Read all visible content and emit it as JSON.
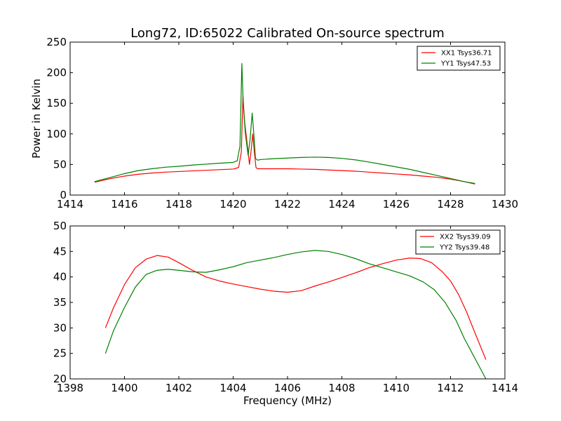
{
  "figure": {
    "title": "Long72, ID:65022 Calibrated On-source spectrum"
  },
  "chart_data": [
    {
      "type": "line",
      "title": "Long72, ID:65022 Calibrated On-source spectrum",
      "xlabel": "",
      "ylabel": "Power in Kelvin",
      "xlim": [
        1414,
        1430
      ],
      "ylim": [
        0,
        250
      ],
      "xticks": [
        1414,
        1416,
        1418,
        1420,
        1422,
        1424,
        1426,
        1428,
        1430
      ],
      "yticks": [
        0,
        50,
        100,
        150,
        200,
        250
      ],
      "grid": false,
      "legend": "top-right",
      "series": [
        {
          "name": "XX1 Tsys36.71",
          "color": "#ff0000",
          "x": [
            1414.9,
            1415.5,
            1416,
            1416.5,
            1417,
            1417.5,
            1418,
            1418.5,
            1419,
            1419.5,
            1420,
            1420.2,
            1420.3,
            1420.36,
            1420.42,
            1420.5,
            1420.6,
            1420.66,
            1420.72,
            1420.78,
            1420.84,
            1420.9,
            1421,
            1421.5,
            1422,
            1422.5,
            1423,
            1423.5,
            1424,
            1424.5,
            1425,
            1425.5,
            1426,
            1426.5,
            1427,
            1427.5,
            1428,
            1428.5,
            1428.9
          ],
          "y": [
            21,
            27,
            31,
            34,
            36,
            37.5,
            38.5,
            39.5,
            40.5,
            41.5,
            42.5,
            45,
            70,
            162,
            120,
            90,
            50,
            72,
            100,
            70,
            45,
            43,
            43,
            43,
            43,
            42.5,
            42,
            41,
            40,
            39,
            37.5,
            36,
            34.5,
            33,
            31,
            29,
            26,
            22,
            18
          ]
        },
        {
          "name": "YY1 Tsys47.53",
          "color": "#008000",
          "x": [
            1414.9,
            1415.5,
            1416,
            1416.5,
            1417,
            1417.5,
            1418,
            1418.5,
            1419,
            1419.5,
            1420,
            1420.15,
            1420.25,
            1420.32,
            1420.37,
            1420.45,
            1420.55,
            1420.62,
            1420.7,
            1420.76,
            1420.82,
            1420.9,
            1421,
            1421.5,
            1422,
            1422.5,
            1423,
            1423.5,
            1424,
            1424.5,
            1425,
            1425.5,
            1426,
            1426.5,
            1427,
            1427.5,
            1428,
            1428.5,
            1428.9
          ],
          "y": [
            22,
            29,
            35,
            40,
            43,
            45.5,
            47,
            49,
            50.5,
            52,
            53.5,
            56,
            80,
            215,
            150,
            100,
            65,
            90,
            134,
            100,
            60,
            57,
            58,
            59.5,
            60.5,
            61.5,
            62,
            61.5,
            60,
            57.5,
            54,
            50,
            46,
            42,
            37,
            32,
            27,
            22,
            19
          ]
        }
      ]
    },
    {
      "type": "line",
      "title": "",
      "xlabel": "Frequency (MHz)",
      "ylabel": "",
      "xlim": [
        1398,
        1414
      ],
      "ylim": [
        20,
        50
      ],
      "xticks": [
        1398,
        1400,
        1402,
        1404,
        1406,
        1408,
        1410,
        1412,
        1414
      ],
      "yticks": [
        20,
        25,
        30,
        35,
        40,
        45,
        50
      ],
      "grid": false,
      "legend": "top-right",
      "series": [
        {
          "name": "XX2 Tsys39.09",
          "color": "#ff0000",
          "x": [
            1399.3,
            1399.6,
            1400,
            1400.4,
            1400.8,
            1401.2,
            1401.6,
            1402,
            1402.5,
            1403,
            1403.5,
            1404,
            1404.5,
            1405,
            1405.5,
            1406,
            1406.5,
            1407,
            1407.5,
            1408,
            1408.5,
            1409,
            1409.5,
            1410,
            1410.5,
            1410.9,
            1411.3,
            1411.7,
            1412,
            1412.3,
            1412.6,
            1412.9,
            1413.3
          ],
          "y": [
            30,
            34,
            38.5,
            41.8,
            43.5,
            44.2,
            43.9,
            42.8,
            41.3,
            40,
            39.2,
            38.6,
            38.1,
            37.6,
            37.2,
            37,
            37.3,
            38.2,
            39,
            39.9,
            40.8,
            41.8,
            42.6,
            43.3,
            43.7,
            43.6,
            42.8,
            41,
            39.2,
            36.5,
            33,
            29,
            23.8
          ]
        },
        {
          "name": "YY2 Tsys39.48",
          "color": "#008000",
          "x": [
            1399.3,
            1399.6,
            1400,
            1400.4,
            1400.8,
            1401.2,
            1401.6,
            1402,
            1402.5,
            1403,
            1403.5,
            1404,
            1404.5,
            1405,
            1405.5,
            1406,
            1406.5,
            1407,
            1407.5,
            1408,
            1408.5,
            1409,
            1409.5,
            1410,
            1410.5,
            1411,
            1411.4,
            1411.8,
            1412.2,
            1412.5,
            1412.8,
            1413.3
          ],
          "y": [
            25,
            29.5,
            34,
            38,
            40.5,
            41.3,
            41.5,
            41.3,
            41,
            40.9,
            41.4,
            42,
            42.8,
            43.3,
            43.8,
            44.4,
            44.9,
            45.2,
            45,
            44.4,
            43.6,
            42.6,
            41.8,
            41,
            40.2,
            39,
            37.5,
            35,
            31.5,
            28,
            25,
            20
          ]
        }
      ]
    }
  ]
}
